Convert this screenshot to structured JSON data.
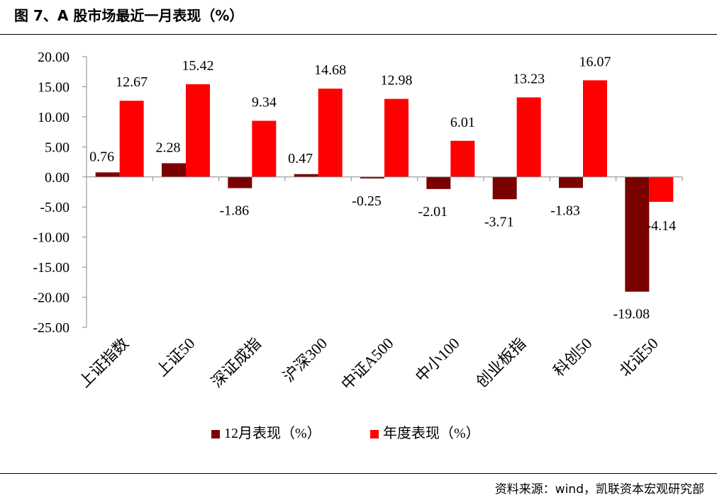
{
  "title": "图 7、A 股市场最近一月表现（%）",
  "source": "资料来源：wind，凯联资本宏观研究部",
  "colors": {
    "series1": "#7B0000",
    "series2": "#FF0000"
  },
  "chart_data": {
    "type": "bar",
    "categories": [
      "上证指数",
      "上证50",
      "深证成指",
      "沪深300",
      "中证A500",
      "中小100",
      "创业板指",
      "科创50",
      "北证50"
    ],
    "series": [
      {
        "name": "12月表现（%）",
        "values": [
          0.76,
          2.28,
          -1.86,
          0.47,
          -0.25,
          -2.01,
          -3.71,
          -1.83,
          -19.08
        ],
        "labels": [
          "0.76",
          "2.28",
          "-1.86",
          "0.47",
          "-0.25",
          "-2.01",
          "-3.71",
          "-1.83",
          "-19.08"
        ]
      },
      {
        "name": "年度表现（%）",
        "values": [
          12.67,
          15.42,
          9.34,
          14.68,
          12.98,
          6.01,
          13.23,
          16.07,
          -4.14
        ],
        "labels": [
          "12.67",
          "15.42",
          "9.34",
          "14.68",
          "12.98",
          "6.01",
          "13.23",
          "16.07",
          "-4.14"
        ]
      }
    ],
    "ylim": [
      -25,
      20
    ],
    "yticks": [
      "20.00",
      "15.00",
      "10.00",
      "5.00",
      "0.00",
      "-5.00",
      "-10.00",
      "-15.00",
      "-20.00",
      "-25.00"
    ],
    "ytick_values": [
      20,
      15,
      10,
      5,
      0,
      -5,
      -10,
      -15,
      -20,
      -25
    ],
    "legend_position": "bottom",
    "grid": false
  }
}
